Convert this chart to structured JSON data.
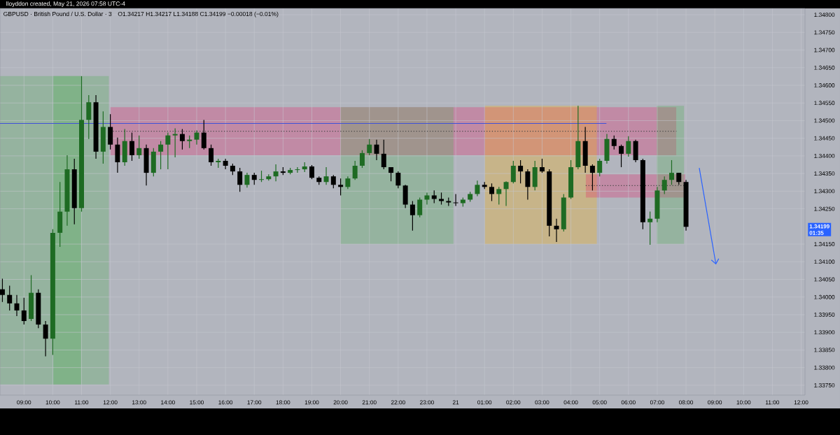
{
  "chart_data": {
    "type": "candlestick",
    "title": "GBPUSD · British Pound / U.S. Dollar · 3",
    "subtitle": "O1.34217  H1.34217  L1.34188  C1.34199  −0.00018 (−0.01%)",
    "annotations": [
      "lloyddon created, May 21, 2026 07:58 UTC-4",
      "1.34199",
      "01:35"
    ],
    "x": [
      "2026-05-20T08:15",
      "2026-05-20T08:30",
      "2026-05-20T08:45",
      "2026-05-20T09:00",
      "2026-05-20T09:15",
      "2026-05-20T09:30",
      "2026-05-20T09:45",
      "2026-05-20T10:00",
      "2026-05-20T10:15",
      "2026-05-20T10:30",
      "2026-05-20T10:45",
      "2026-05-20T11:00",
      "2026-05-20T11:15",
      "2026-05-20T11:30",
      "2026-05-20T11:45",
      "2026-05-20T12:00",
      "2026-05-20T12:15",
      "2026-05-20T12:30",
      "2026-05-20T12:45",
      "2026-05-20T13:00",
      "2026-05-20T13:15",
      "2026-05-20T13:30",
      "2026-05-20T13:45",
      "2026-05-20T14:00",
      "2026-05-20T14:15",
      "2026-05-20T14:30",
      "2026-05-20T14:45",
      "2026-05-20T15:00",
      "2026-05-20T15:15",
      "2026-05-20T15:30",
      "2026-05-20T15:45",
      "2026-05-20T16:00",
      "2026-05-20T16:15",
      "2026-05-20T16:30",
      "2026-05-20T16:45",
      "2026-05-20T17:00",
      "2026-05-20T17:15",
      "2026-05-20T17:30",
      "2026-05-20T17:45",
      "2026-05-20T18:00",
      "2026-05-20T18:15",
      "2026-05-20T18:30",
      "2026-05-20T18:45",
      "2026-05-20T19:00",
      "2026-05-20T19:15",
      "2026-05-20T19:30",
      "2026-05-20T19:45",
      "2026-05-20T20:00",
      "2026-05-20T20:15",
      "2026-05-20T20:30",
      "2026-05-20T20:45",
      "2026-05-20T21:00",
      "2026-05-20T21:15",
      "2026-05-20T21:30",
      "2026-05-20T21:45",
      "2026-05-20T22:00",
      "2026-05-20T22:15",
      "2026-05-20T22:30",
      "2026-05-20T22:45",
      "2026-05-20T23:00",
      "2026-05-20T23:15",
      "2026-05-20T23:30",
      "2026-05-20T23:45",
      "2026-05-21T00:00",
      "2026-05-21T00:15",
      "2026-05-21T00:30",
      "2026-05-21T00:45",
      "2026-05-21T01:00",
      "2026-05-21T01:15",
      "2026-05-21T01:30",
      "2026-05-21T01:45",
      "2026-05-21T02:00",
      "2026-05-21T02:15",
      "2026-05-21T02:30",
      "2026-05-21T02:45",
      "2026-05-21T03:00",
      "2026-05-21T03:15",
      "2026-05-21T03:30",
      "2026-05-21T03:45",
      "2026-05-21T04:00",
      "2026-05-21T04:15",
      "2026-05-21T04:30",
      "2026-05-21T04:45",
      "2026-05-21T05:00",
      "2026-05-21T05:15",
      "2026-05-21T05:30",
      "2026-05-21T05:45",
      "2026-05-21T06:00",
      "2026-05-21T06:15",
      "2026-05-21T06:30",
      "2026-05-21T06:45",
      "2026-05-21T07:00",
      "2026-05-21T07:15",
      "2026-05-21T07:30",
      "2026-05-21T07:45",
      "2026-05-21T08:00"
    ],
    "ohlc": [
      [
        1.34022,
        1.34052,
        1.33986,
        1.34006
      ],
      [
        1.34006,
        1.34032,
        1.33962,
        1.33982
      ],
      [
        1.33982,
        1.34006,
        1.33946,
        1.33962
      ],
      [
        1.33962,
        1.33998,
        1.33922,
        1.33932
      ],
      [
        1.33938,
        1.34062,
        1.33932,
        1.34012
      ],
      [
        1.34012,
        1.34022,
        1.33912,
        1.33922
      ],
      [
        1.33922,
        1.33932,
        1.33832,
        1.33882
      ],
      [
        1.33882,
        1.34192,
        1.33836,
        1.34182
      ],
      [
        1.34182,
        1.34326,
        1.34142,
        1.34242
      ],
      [
        1.34242,
        1.34402,
        1.34202,
        1.34362
      ],
      [
        1.34362,
        1.34392,
        1.34206,
        1.34252
      ],
      [
        1.34252,
        1.34626,
        1.34242,
        1.34502
      ],
      [
        1.34502,
        1.34572,
        1.34448,
        1.34552
      ],
      [
        1.34552,
        1.34572,
        1.34392,
        1.34412
      ],
      [
        1.34412,
        1.34526,
        1.34378,
        1.34482
      ],
      [
        1.34482,
        1.34518,
        1.34418,
        1.34432
      ],
      [
        1.34432,
        1.34452,
        1.34352,
        1.34382
      ],
      [
        1.34382,
        1.34476,
        1.34372,
        1.34442
      ],
      [
        1.34442,
        1.34466,
        1.34386,
        1.34402
      ],
      [
        1.34402,
        1.34458,
        1.34392,
        1.34422
      ],
      [
        1.34422,
        1.34432,
        1.34316,
        1.34352
      ],
      [
        1.34352,
        1.34422,
        1.34342,
        1.34412
      ],
      [
        1.34412,
        1.34442,
        1.34362,
        1.34432
      ],
      [
        1.34432,
        1.34466,
        1.34362,
        1.34458
      ],
      [
        1.34458,
        1.34478,
        1.34396,
        1.34462
      ],
      [
        1.34462,
        1.34476,
        1.34418,
        1.34442
      ],
      [
        1.34442,
        1.34458,
        1.34422,
        1.34446
      ],
      [
        1.34446,
        1.34472,
        1.34432,
        1.34466
      ],
      [
        1.34466,
        1.34502,
        1.34418,
        1.34422
      ],
      [
        1.34422,
        1.34432,
        1.34372,
        1.34382
      ],
      [
        1.34382,
        1.34392,
        1.34366,
        1.34386
      ],
      [
        1.34386,
        1.34392,
        1.34362,
        1.34372
      ],
      [
        1.34372,
        1.34378,
        1.34346,
        1.34356
      ],
      [
        1.34356,
        1.34366,
        1.34298,
        1.34318
      ],
      [
        1.34318,
        1.34352,
        1.3431,
        1.34346
      ],
      [
        1.34346,
        1.34352,
        1.34318,
        1.34332
      ],
      [
        1.34332,
        1.34358,
        1.34326,
        1.34334
      ],
      [
        1.34334,
        1.34348,
        1.3433,
        1.34342
      ],
      [
        1.34342,
        1.34376,
        1.34328,
        1.34356
      ],
      [
        1.34356,
        1.34368,
        1.34346,
        1.34352
      ],
      [
        1.34352,
        1.34366,
        1.34348,
        1.3436
      ],
      [
        1.3436,
        1.34368,
        1.34352,
        1.34362
      ],
      [
        1.34362,
        1.34382,
        1.34354,
        1.3437
      ],
      [
        1.3437,
        1.34374,
        1.34334,
        1.34338
      ],
      [
        1.34338,
        1.34342,
        1.34318,
        1.34326
      ],
      [
        1.34326,
        1.34368,
        1.34318,
        1.34342
      ],
      [
        1.34342,
        1.34346,
        1.34308,
        1.34318
      ],
      [
        1.34318,
        1.34336,
        1.34288,
        1.34312
      ],
      [
        1.34312,
        1.34342,
        1.34306,
        1.34336
      ],
      [
        1.34336,
        1.34386,
        1.34332,
        1.34372
      ],
      [
        1.34372,
        1.34416,
        1.34366,
        1.34408
      ],
      [
        1.34408,
        1.34448,
        1.34402,
        1.34432
      ],
      [
        1.34432,
        1.34446,
        1.34388,
        1.34406
      ],
      [
        1.34406,
        1.34446,
        1.34362,
        1.34368
      ],
      [
        1.34368,
        1.34368,
        1.34328,
        1.34352
      ],
      [
        1.34352,
        1.34356,
        1.34308,
        1.34316
      ],
      [
        1.34316,
        1.34318,
        1.34252,
        1.34262
      ],
      [
        1.34262,
        1.34272,
        1.34188,
        1.34232
      ],
      [
        1.34232,
        1.34282,
        1.34226,
        1.34276
      ],
      [
        1.34276,
        1.34296,
        1.34262,
        1.34288
      ],
      [
        1.34288,
        1.34302,
        1.34266,
        1.34278
      ],
      [
        1.34278,
        1.34296,
        1.34262,
        1.34272
      ],
      [
        1.34272,
        1.34282,
        1.34258,
        1.34268
      ],
      [
        1.34268,
        1.34292,
        1.34258,
        1.34266
      ],
      [
        1.34266,
        1.34282,
        1.34256,
        1.34276
      ],
      [
        1.34276,
        1.34298,
        1.3427,
        1.34292
      ],
      [
        1.34292,
        1.3433,
        1.34286,
        1.34318
      ],
      [
        1.34318,
        1.34326,
        1.34306,
        1.34312
      ],
      [
        1.34312,
        1.34322,
        1.34272,
        1.34292
      ],
      [
        1.34292,
        1.34312,
        1.34262,
        1.34306
      ],
      [
        1.34306,
        1.34328,
        1.34258,
        1.34326
      ],
      [
        1.34326,
        1.34386,
        1.34322,
        1.34372
      ],
      [
        1.34372,
        1.34388,
        1.34322,
        1.34356
      ],
      [
        1.34356,
        1.34362,
        1.34276,
        1.34312
      ],
      [
        1.34312,
        1.34386,
        1.34302,
        1.34368
      ],
      [
        1.34368,
        1.34392,
        1.34352,
        1.34356
      ],
      [
        1.34356,
        1.34362,
        1.34172,
        1.34202
      ],
      [
        1.34202,
        1.34222,
        1.34156,
        1.34192
      ],
      [
        1.34192,
        1.34292,
        1.34186,
        1.34282
      ],
      [
        1.34282,
        1.34388,
        1.34278,
        1.34368
      ],
      [
        1.34368,
        1.34542,
        1.34362,
        1.34442
      ],
      [
        1.34442,
        1.34482,
        1.34352,
        1.34372
      ],
      [
        1.34372,
        1.34376,
        1.34302,
        1.34352
      ],
      [
        1.34352,
        1.34392,
        1.34342,
        1.34386
      ],
      [
        1.34386,
        1.34462,
        1.34378,
        1.34448
      ],
      [
        1.34448,
        1.34458,
        1.34418,
        1.34428
      ],
      [
        1.34428,
        1.34432,
        1.34368,
        1.34406
      ],
      [
        1.34406,
        1.34456,
        1.34398,
        1.34442
      ],
      [
        1.34442,
        1.34446,
        1.34382,
        1.34388
      ],
      [
        1.34388,
        1.34392,
        1.34192,
        1.34212
      ],
      [
        1.34212,
        1.34242,
        1.34148,
        1.34222
      ],
      [
        1.34222,
        1.34312,
        1.34212,
        1.34302
      ],
      [
        1.34302,
        1.34342,
        1.34292,
        1.34332
      ],
      [
        1.34332,
        1.34388,
        1.34318,
        1.34352
      ],
      [
        1.34352,
        1.34352,
        1.34318,
        1.34326
      ],
      [
        1.34326,
        1.34332,
        1.34188,
        1.34199
      ]
    ],
    "series": [
      {
        "type": "line",
        "color": "#444444",
        "line_style": "dotted",
        "x": [
          "2026-05-20T12:00",
          "2026-05-21T07:40"
        ],
        "values": [
          1.3447,
          1.3447
        ]
      },
      {
        "type": "line",
        "color": "#444444",
        "line_style": "dotted",
        "x": [
          "2026-05-21T04:31",
          "2026-05-21T07:58"
        ],
        "values": [
          1.34316,
          1.34316
        ]
      },
      {
        "type": "line",
        "color": "#3f51d9",
        "line_style": "solid",
        "x": [
          "2026-05-20T08:10",
          "2026-05-21T05:14"
        ],
        "values": [
          1.34492,
          1.34492
        ]
      }
    ],
    "xlim": [
      "2026-05-20T08:10",
      "2026-05-21T12:08"
    ],
    "ylim": [
      1.33722,
      1.34818
    ],
    "xticks": [
      {
        "value": "2026-05-20T09:00",
        "label": "09:00"
      },
      {
        "value": "2026-05-20T10:00",
        "label": "10:00"
      },
      {
        "value": "2026-05-20T11:00",
        "label": "11:00"
      },
      {
        "value": "2026-05-20T12:00",
        "label": "12:00"
      },
      {
        "value": "2026-05-20T13:00",
        "label": "13:00"
      },
      {
        "value": "2026-05-20T14:00",
        "label": "14:00"
      },
      {
        "value": "2026-05-20T15:00",
        "label": "15:00"
      },
      {
        "value": "2026-05-20T16:00",
        "label": "16:00"
      },
      {
        "value": "2026-05-20T17:00",
        "label": "17:00"
      },
      {
        "value": "2026-05-20T18:00",
        "label": "18:00"
      },
      {
        "value": "2026-05-20T19:00",
        "label": "19:00"
      },
      {
        "value": "2026-05-20T20:00",
        "label": "20:00"
      },
      {
        "value": "2026-05-20T21:00",
        "label": "21:00"
      },
      {
        "value": "2026-05-20T22:00",
        "label": "22:00"
      },
      {
        "value": "2026-05-20T23:00",
        "label": "23:00"
      },
      {
        "value": "2026-05-21T00:00",
        "label": "21"
      },
      {
        "value": "2026-05-21T01:00",
        "label": "01:00"
      },
      {
        "value": "2026-05-21T02:00",
        "label": "02:00"
      },
      {
        "value": "2026-05-21T03:00",
        "label": "03:00"
      },
      {
        "value": "2026-05-21T04:00",
        "label": "04:00"
      },
      {
        "value": "2026-05-21T05:00",
        "label": "05:00"
      },
      {
        "value": "2026-05-21T06:00",
        "label": "06:00"
      },
      {
        "value": "2026-05-21T07:00",
        "label": "07:00"
      },
      {
        "value": "2026-05-21T08:00",
        "label": "08:00"
      },
      {
        "value": "2026-05-21T09:00",
        "label": "09:00"
      },
      {
        "value": "2026-05-21T10:00",
        "label": "10:00"
      },
      {
        "value": "2026-05-21T11:00",
        "label": "11:00"
      },
      {
        "value": "2026-05-21T12:00",
        "label": "12:00"
      }
    ],
    "yticks": [
      {
        "value": 1.3375,
        "label": "1.33750"
      },
      {
        "value": 1.338,
        "label": "1.33800"
      },
      {
        "value": 1.3385,
        "label": "1.33850"
      },
      {
        "value": 1.339,
        "label": "1.33900"
      },
      {
        "value": 1.3395,
        "label": "1.33950"
      },
      {
        "value": 1.34,
        "label": "1.34000"
      },
      {
        "value": 1.3405,
        "label": "1.34050"
      },
      {
        "value": 1.341,
        "label": "1.34100"
      },
      {
        "value": 1.3415,
        "label": "1.34150"
      },
      {
        "value": 1.3425,
        "label": "1.34250"
      },
      {
        "value": 1.343,
        "label": "1.34300"
      },
      {
        "value": 1.3435,
        "label": "1.34350"
      },
      {
        "value": 1.344,
        "label": "1.34400"
      },
      {
        "value": 1.3445,
        "label": "1.34450"
      },
      {
        "value": 1.345,
        "label": "1.34500"
      },
      {
        "value": 1.3455,
        "label": "1.34550"
      },
      {
        "value": 1.346,
        "label": "1.34600"
      },
      {
        "value": 1.3465,
        "label": "1.34650"
      },
      {
        "value": 1.347,
        "label": "1.34700"
      },
      {
        "value": 1.3475,
        "label": "1.34750"
      },
      {
        "value": 1.348,
        "label": "1.34800"
      }
    ],
    "grid": true
  }
}
